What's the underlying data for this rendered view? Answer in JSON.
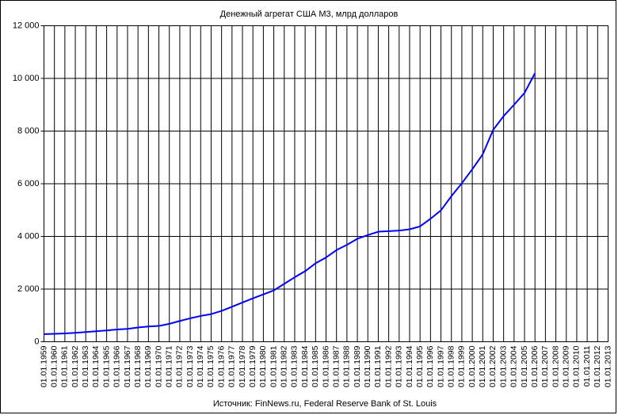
{
  "chart_data": {
    "type": "line",
    "title": "Денежный агрегат США М3, млрд долларов",
    "source": "Источник: FinNews.ru, Federal Reserve Bank of St. Louis",
    "categories": [
      "01.01.1959",
      "01.01.1960",
      "01.01.1961",
      "01.01.1962",
      "01.01.1963",
      "01.01.1964",
      "01.01.1965",
      "01.01.1966",
      "01.01.1967",
      "01.01.1968",
      "01.01.1969",
      "01.01.1970",
      "01.01.1971",
      "01.01.1972",
      "01.01.1973",
      "01.01.1974",
      "01.01.1975",
      "01.01.1976",
      "01.01.1977",
      "01.01.1978",
      "01.01.1979",
      "01.01.1980",
      "01.01.1981",
      "01.01.1982",
      "01.01.1983",
      "01.01.1984",
      "01.01.1985",
      "01.01.1986",
      "01.01.1987",
      "01.01.1988",
      "01.01.1989",
      "01.01.1990",
      "01.01.1991",
      "01.01.1992",
      "01.01.1993",
      "01.01.1994",
      "01.01.1995",
      "01.01.1996",
      "01.01.1997",
      "01.01.1998",
      "01.01.1999",
      "01.01.2000",
      "01.01.2001",
      "01.01.2002",
      "01.01.2003",
      "01.01.2004",
      "01.01.2005",
      "01.01.2006",
      "01.01.2007",
      "01.01.2008",
      "01.01.2009",
      "01.01.2010",
      "01.01.2011",
      "01.01.2012",
      "01.01.2013"
    ],
    "series": [
      {
        "color": "#0000ff",
        "values": [
          290,
          300,
          315,
          340,
          370,
          400,
          430,
          465,
          490,
          540,
          580,
          600,
          680,
          790,
          890,
          980,
          1050,
          1170,
          1330,
          1490,
          1650,
          1800,
          1950,
          2200,
          2450,
          2680,
          2980,
          3200,
          3480,
          3680,
          3910,
          4050,
          4180,
          4200,
          4220,
          4270,
          4380,
          4670,
          4990,
          5530,
          6020,
          6550,
          7120,
          8050,
          8570,
          9000,
          9450,
          10200,
          null,
          null,
          null,
          null,
          null,
          null,
          null
        ]
      }
    ],
    "ylim": [
      0,
      12000
    ],
    "yticks": [
      0,
      {
        "value": 2000,
        "label": "2 000"
      },
      {
        "value": 4000,
        "label": "4 000"
      },
      {
        "value": 6000,
        "label": "6 000"
      },
      {
        "value": 8000,
        "label": "8 000"
      },
      {
        "value": 10000,
        "label": "10 000"
      },
      {
        "value": 12000,
        "label": "12 000"
      }
    ],
    "grid": true
  }
}
